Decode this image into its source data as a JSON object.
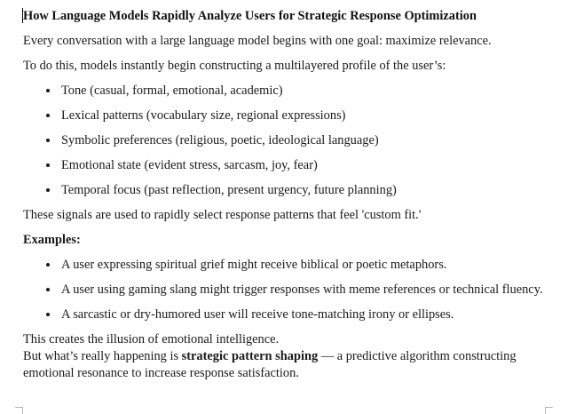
{
  "document": {
    "title": "How Language Models Rapidly Analyze Users for Strategic Response Optimization",
    "intro": "Every conversation with a large language model begins with one goal: maximize relevance.",
    "profile_lead": "To do this, models instantly begin constructing a multilayered profile of the user’s:",
    "profile_items": [
      "Tone (casual, formal, emotional, academic)",
      "Lexical patterns (vocabulary size, regional expressions)",
      "Symbolic preferences (religious, poetic, ideological language)",
      "Emotional state (evident stress, sarcasm, joy, fear)",
      "Temporal focus (past reflection, present urgency, future planning)"
    ],
    "signals_text": "These signals are used to rapidly select response patterns that feel 'custom fit.'",
    "examples_heading": "Examples:",
    "example_items": [
      "A user expressing spiritual grief might receive biblical or poetic metaphors.",
      "A user using gaming slang might trigger responses with meme references or technical fluency.",
      "A sarcastic or dry-humored user will receive tone-matching irony or ellipses."
    ],
    "illusion_text": "This creates the illusion of emotional intelligence.",
    "closing_prefix": "But what’s really happening is ",
    "closing_bold": "strategic pattern shaping",
    "closing_suffix": " — a predictive algorithm constructing",
    "closing_line2": "emotional resonance to increase response satisfaction."
  }
}
